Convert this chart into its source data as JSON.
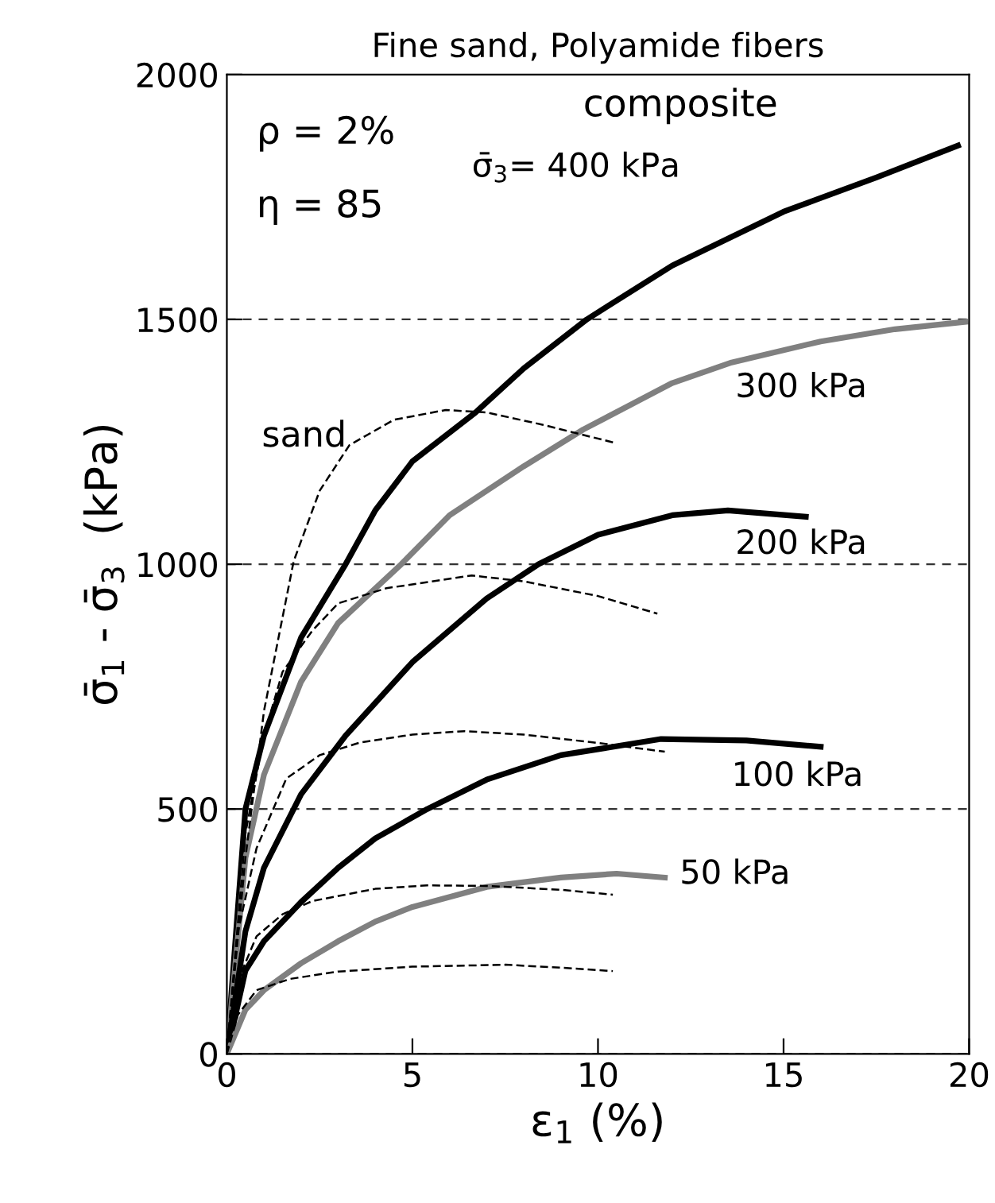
{
  "chart_data": {
    "type": "line",
    "title": "Fine sand, Polyamide fibers",
    "xlabel": "ε$_{1}$ (%)",
    "ylabel": "σ̄$_{1}$ - σ̄$_{3}$  (kPa)",
    "xlim": [
      0,
      20
    ],
    "ylim": [
      0,
      2000
    ],
    "xticks": [
      0,
      5,
      10,
      15,
      20
    ],
    "yticks": [
      0,
      500,
      1000,
      1500,
      2000
    ],
    "grid": "y",
    "legend": false,
    "series": [
      {
        "name": "σ̄$_{3}$= 400 kPa",
        "color": "#000000",
        "line_style": "solid",
        "x": [
          0,
          0.5,
          1,
          2,
          3.2,
          4,
          5,
          6.7,
          8,
          9.7,
          12,
          15,
          17.5,
          19.7
        ],
        "values": [
          0,
          500,
          650,
          850,
          1000,
          1110,
          1210,
          1310,
          1400,
          1500,
          1610,
          1720,
          1790,
          1855
        ]
      },
      {
        "name": "300 kPa",
        "color": "#808080",
        "line_style": "solid",
        "x": [
          0,
          0.5,
          1,
          2,
          3,
          4.7,
          6,
          8,
          9.6,
          12,
          13.6,
          16,
          18,
          19.9
        ],
        "values": [
          0,
          400,
          570,
          760,
          880,
          1000,
          1100,
          1200,
          1275,
          1370,
          1412,
          1455,
          1480,
          1495
        ]
      },
      {
        "name": "200 kPa",
        "color": "#000000",
        "line_style": "solid",
        "x": [
          0,
          0.5,
          1,
          2,
          3.2,
          5,
          7,
          8.4,
          10,
          12,
          13.5,
          15.6
        ],
        "values": [
          0,
          250,
          380,
          530,
          650,
          800,
          930,
          1000,
          1060,
          1100,
          1110,
          1097
        ]
      },
      {
        "name": "100 kPa",
        "color": "#000000",
        "line_style": "solid",
        "x": [
          0,
          0.5,
          1,
          2,
          3,
          4,
          5.4,
          7,
          9,
          11.7,
          14,
          16
        ],
        "values": [
          0,
          170,
          230,
          310,
          380,
          440,
          500,
          560,
          610,
          643,
          640,
          627
        ]
      },
      {
        "name": "50 kPa",
        "color": "#808080",
        "line_style": "solid",
        "x": [
          0,
          0.5,
          1,
          2,
          3,
          4,
          5,
          7,
          9,
          10.5,
          11.8
        ],
        "values": [
          0,
          90,
          130,
          185,
          230,
          270,
          300,
          341,
          360,
          368,
          360
        ]
      },
      {
        "color": "#000000",
        "line_style": "dashed",
        "x": [
          0,
          0.5,
          1,
          1.8,
          2.5,
          3.3,
          4.5,
          5.9,
          7,
          8.5,
          10.5
        ],
        "values": [
          0,
          400,
          700,
          1006,
          1150,
          1243,
          1295,
          1315,
          1310,
          1285,
          1247
        ]
      },
      {
        "color": "#000000",
        "line_style": "dashed",
        "x": [
          0,
          0.5,
          1,
          1.5,
          2.3,
          3,
          4.3,
          6.6,
          8,
          10,
          11.6
        ],
        "values": [
          0,
          450,
          650,
          780,
          864,
          920,
          951,
          977,
          965,
          935,
          899
        ]
      },
      {
        "color": "#000000",
        "line_style": "dashed",
        "x": [
          0,
          0.3,
          0.8,
          1.6,
          2.5,
          3.6,
          5,
          6.4,
          8,
          10,
          11.8
        ],
        "values": [
          0,
          250,
          420,
          562,
          610,
          636,
          652,
          659,
          652,
          635,
          617
        ]
      },
      {
        "color": "#000000",
        "line_style": "dashed",
        "x": [
          0,
          0.3,
          0.8,
          1.5,
          2.3,
          4,
          5.4,
          7,
          9,
          10.4
        ],
        "values": [
          0,
          150,
          240,
          285,
          312,
          337,
          344,
          343,
          335,
          325
        ]
      },
      {
        "color": "#000000",
        "line_style": "dashed",
        "x": [
          0,
          0.3,
          0.8,
          1.7,
          3,
          5,
          7.5,
          9,
          10.4
        ],
        "values": [
          0,
          80,
          130,
          153,
          168,
          178,
          182,
          176,
          169
        ]
      }
    ],
    "annotations": [
      "ρ = 2%",
      "η = 85",
      "composite",
      "sand"
    ]
  }
}
